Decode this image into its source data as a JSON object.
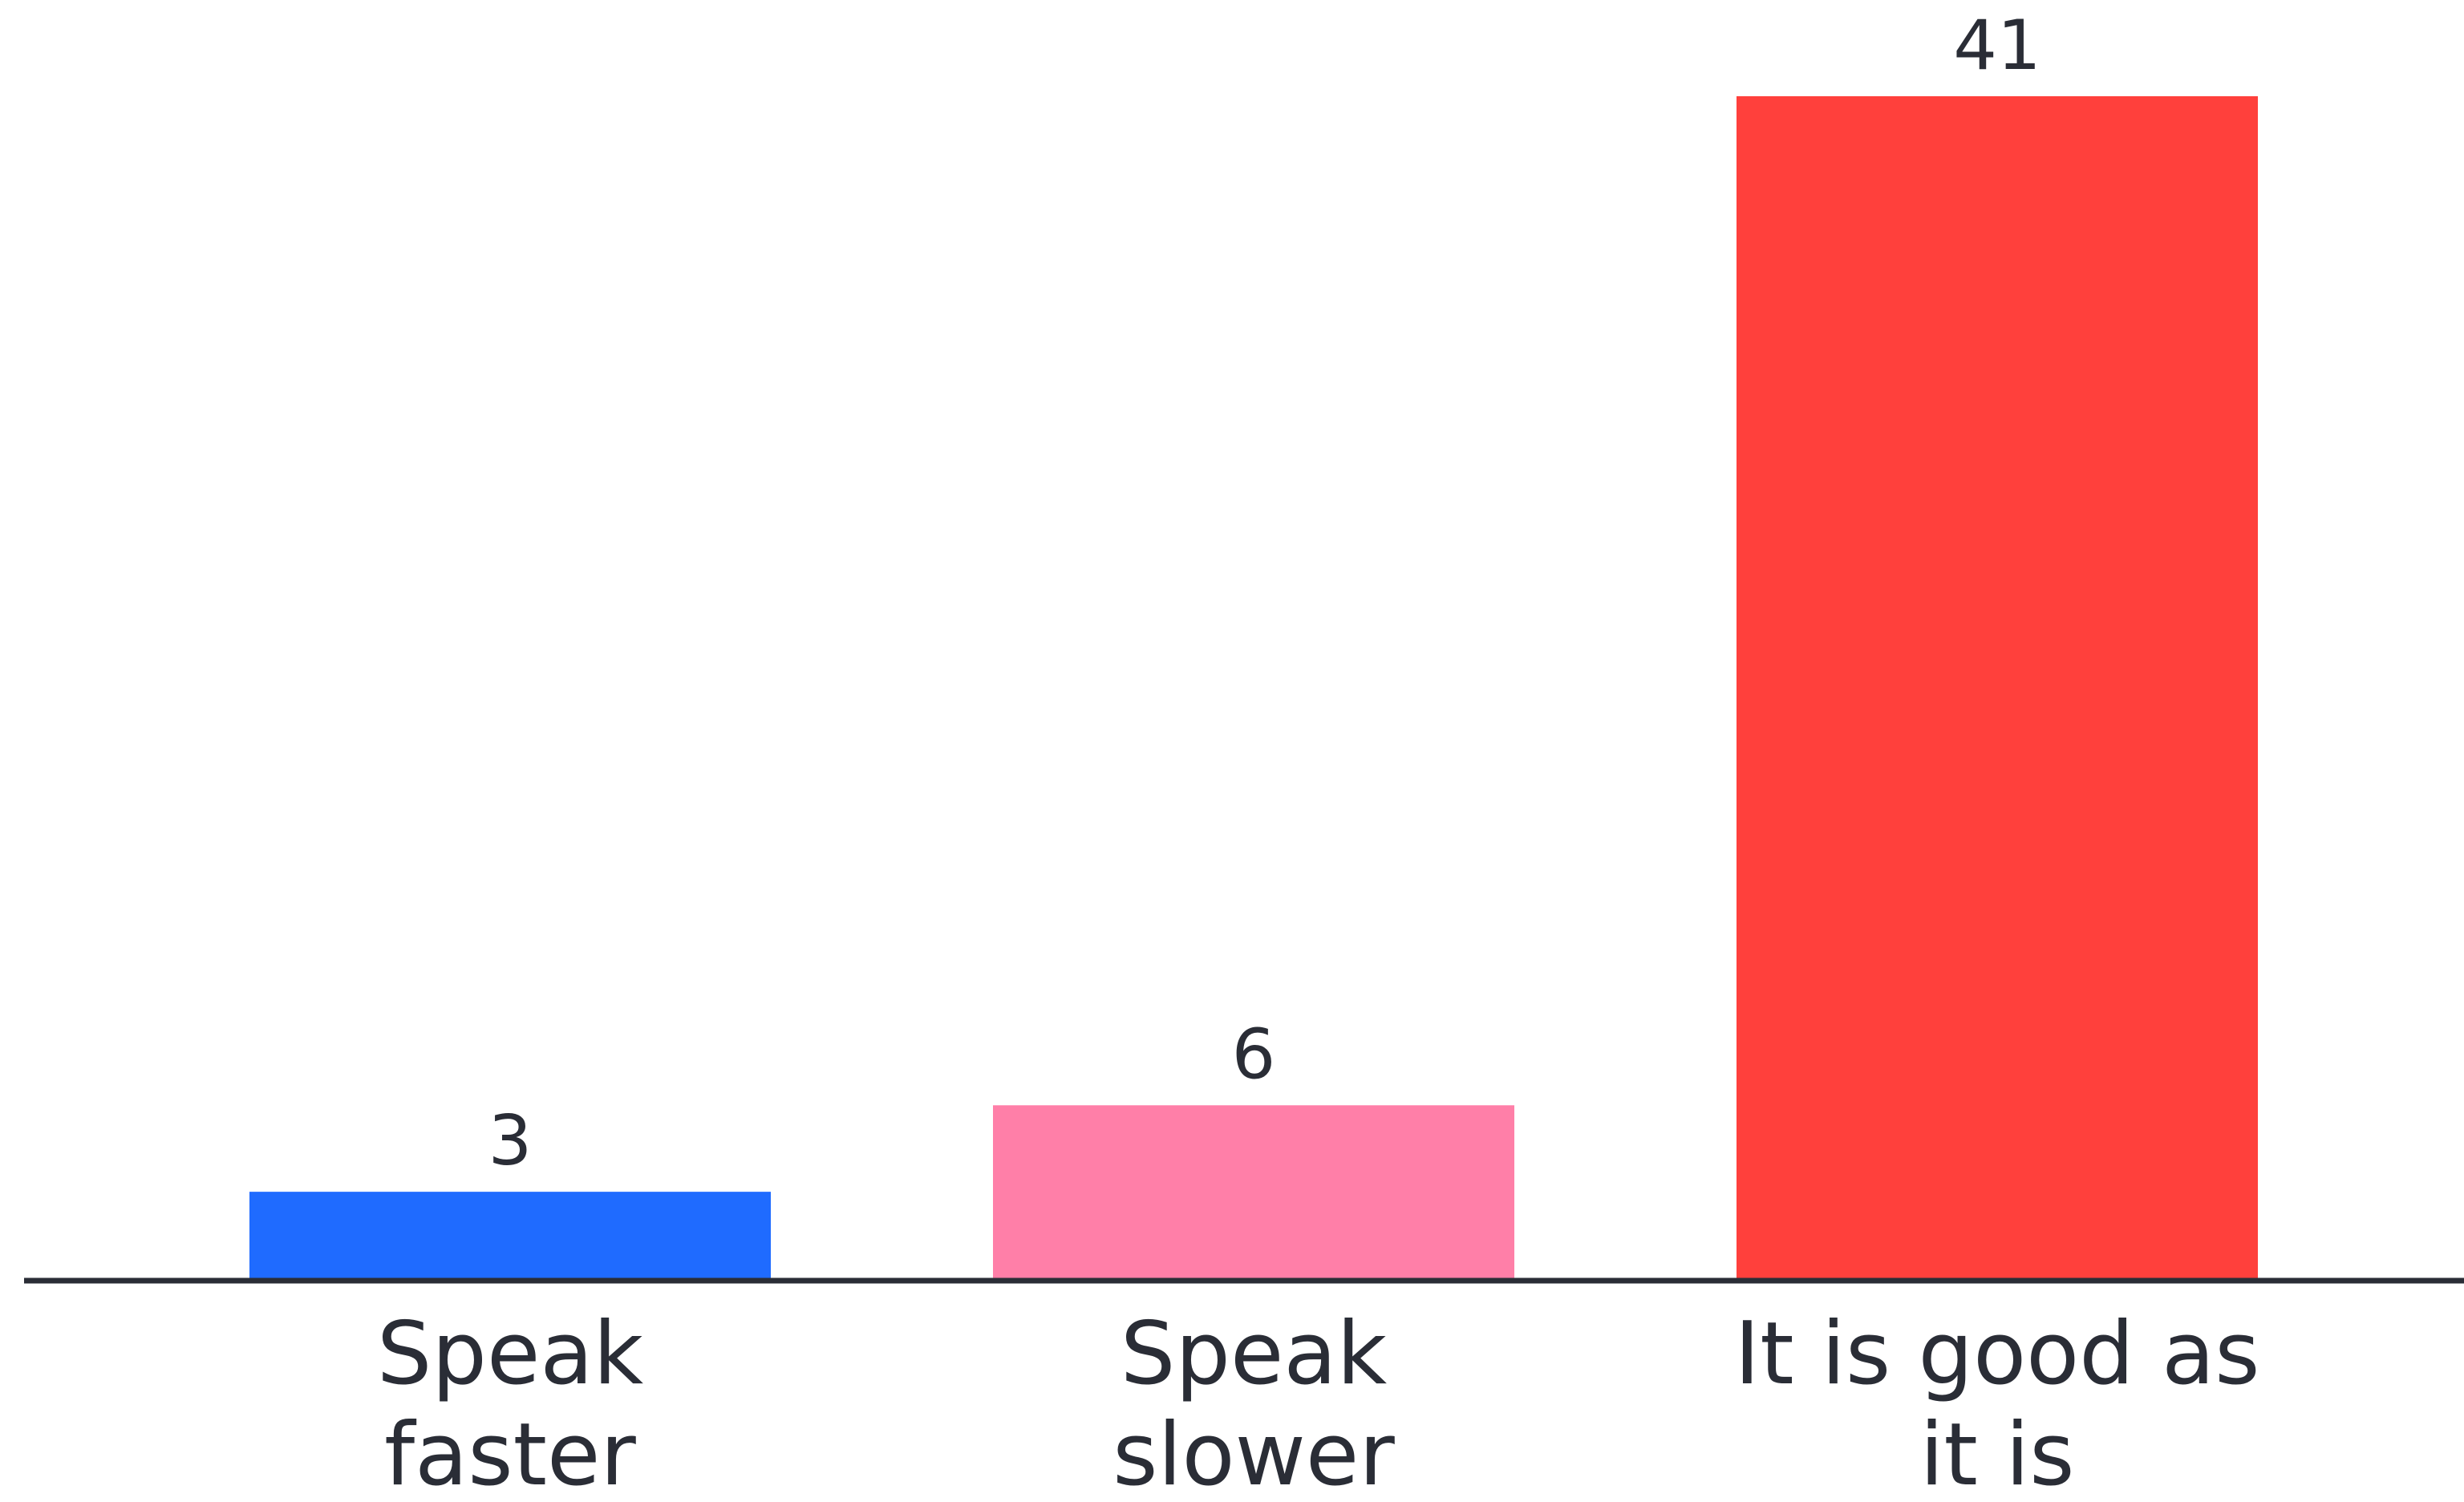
{
  "chart_data": {
    "type": "bar",
    "categories": [
      [
        "Speak",
        "faster"
      ],
      [
        "Speak",
        "slower"
      ],
      [
        "It is good as",
        "it is"
      ]
    ],
    "values": [
      3,
      6,
      41
    ],
    "colors": [
      "#1f6bff",
      "#ff7fa8",
      "#ff403c"
    ],
    "axis_color": "#2a2d36",
    "text_color": "#2a2d36",
    "show_values": true,
    "ylim": [
      0,
      41
    ],
    "grid": false,
    "legend": "none"
  }
}
